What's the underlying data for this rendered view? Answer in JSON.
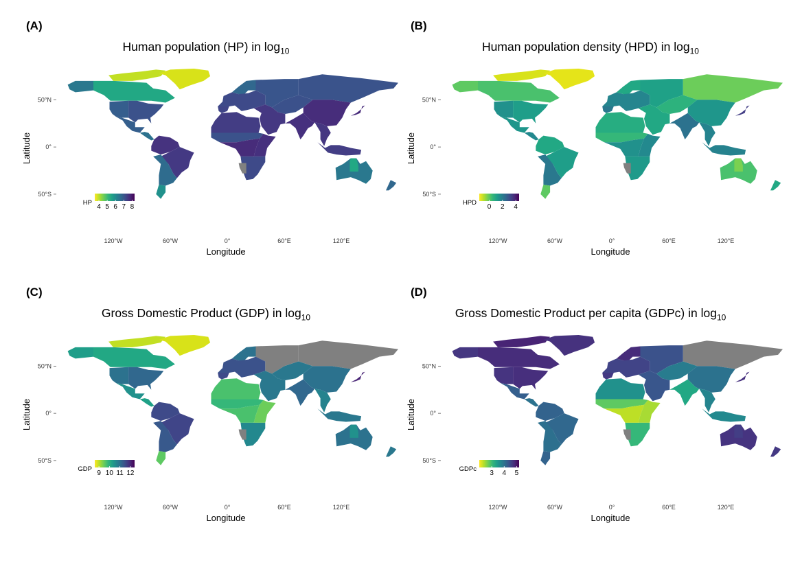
{
  "panels": [
    {
      "letter": "(A)",
      "title_main": "Human population (HP) in log",
      "title_sub": "10",
      "legend": {
        "title": "HP",
        "min": 3.5,
        "max": 8.3,
        "ticks": [
          "4",
          "5",
          "6",
          "7",
          "8"
        ],
        "tick_values": [
          4,
          5,
          6,
          7,
          8
        ]
      },
      "regions": {
        "greenland": "#d8e219",
        "arctic_canada": "#c2df23",
        "alaska": "#2a788e",
        "north_canada": "#22a884",
        "usa_west": "#355e8d",
        "usa_east": "#3b528b",
        "mexico": "#355f8d",
        "central_america": "#2c728e",
        "south_america_north": "#46337f",
        "brazil": "#443983",
        "south_america_south": "#2f6c8e",
        "patagonia": "#21918c",
        "europe": "#3e4a89",
        "scandinavia": "#31688e",
        "iberia": "#404588",
        "russia": "#39558c",
        "siberia": "#3a538b",
        "middle_east": "#453882",
        "north_africa": "#433d84",
        "sahara": "#3b528b",
        "central_africa": "#472c7a",
        "east_africa": "#46307e",
        "southern_africa": "#3e4a89",
        "namibia": "#808080",
        "central_asia": "#3b518b",
        "india": "#46307e",
        "china": "#472d7b",
        "southeast_asia": "#453781",
        "japan": "#472a7a",
        "indonesia": "#433e85",
        "australia": "#2a788e",
        "australia_center": "#22a884",
        "new_zealand": "#31688e"
      }
    },
    {
      "letter": "(B)",
      "title_main": "Human population density (HPD) in log",
      "title_sub": "10",
      "legend": {
        "title": "HPD",
        "min": -1.5,
        "max": 4.5,
        "ticks": [
          "0",
          "2",
          "4"
        ],
        "tick_values": [
          0,
          2,
          4
        ]
      },
      "regions": {
        "greenland": "#e5e419",
        "arctic_canada": "#d8e219",
        "alaska": "#5ec962",
        "north_canada": "#4ac16d",
        "usa_west": "#21918c",
        "usa_east": "#1f9e89",
        "mexico": "#1f968b",
        "central_america": "#23888e",
        "south_america_north": "#22a884",
        "brazil": "#1f9e89",
        "south_america_south": "#2a788e",
        "patagonia": "#5ec962",
        "europe": "#25858e",
        "scandinavia": "#22a884",
        "iberia": "#2a788e",
        "russia": "#1fa187",
        "siberia": "#6ccd5a",
        "middle_east": "#22a884",
        "north_africa": "#27ad81",
        "sahara": "#35b779",
        "central_africa": "#21918c",
        "east_africa": "#23898e",
        "southern_africa": "#1f9a8a",
        "namibia": "#808080",
        "central_asia": "#2db27d",
        "india": "#2c728e",
        "china": "#1f968b",
        "southeast_asia": "#25838e",
        "japan": "#433e85",
        "indonesia": "#26828e",
        "australia": "#4ac16d",
        "australia_center": "#7ad151",
        "new_zealand": "#22a884"
      }
    },
    {
      "letter": "(C)",
      "title_main": "Gross Domestic Product (GDP) in log",
      "title_sub": "10",
      "legend": {
        "title": "GDP",
        "min": 8.6,
        "max": 12.4,
        "ticks": [
          "9",
          "10",
          "11",
          "12"
        ],
        "tick_values": [
          9,
          10,
          11,
          12
        ]
      },
      "regions": {
        "greenland": "#d8e219",
        "arctic_canada": "#c2df23",
        "alaska": "#1f9e89",
        "north_canada": "#22a884",
        "usa_west": "#2c728e",
        "usa_east": "#31688e",
        "mexico": "#21918c",
        "central_america": "#1fa187",
        "south_america_north": "#3e4a89",
        "brazil": "#404588",
        "south_america_south": "#38598c",
        "patagonia": "#5ec962",
        "europe": "#3b528b",
        "scandinavia": "#2c728e",
        "iberia": "#3e4a89",
        "russia": "#808080",
        "siberia": "#808080",
        "middle_east": "#2a788e",
        "north_africa": "#4ac16d",
        "sahara": "#35b779",
        "central_africa": "#4ac16d",
        "east_africa": "#6ccd5a",
        "southern_africa": "#23888e",
        "namibia": "#808080",
        "central_asia": "#2a788e",
        "india": "#31688e",
        "china": "#2c728e",
        "southeast_asia": "#25838e",
        "japan": "#482475",
        "indonesia": "#2a788e",
        "australia": "#2c728e",
        "australia_center": "#21918c",
        "new_zealand": "#2a788e"
      }
    },
    {
      "letter": "(D)",
      "title_main": "Gross Domestic Product per capita (GDPc) in log",
      "title_sub": "10",
      "legend": {
        "title": "GDPc",
        "min": 2.0,
        "max": 5.2,
        "ticks": [
          "3",
          "4",
          "5"
        ],
        "tick_values": [
          3,
          4,
          5
        ]
      },
      "regions": {
        "greenland": "#46327e",
        "arctic_canada": "#482475",
        "alaska": "#453781",
        "north_canada": "#472d7b",
        "usa_west": "#463480",
        "usa_east": "#472f7d",
        "mexico": "#355f8d",
        "central_america": "#2c728e",
        "south_america_north": "#33638d",
        "brazil": "#31688e",
        "south_america_south": "#2d708e",
        "patagonia": "#33638d",
        "europe": "#414487",
        "scandinavia": "#472c7a",
        "iberia": "#443983",
        "russia": "#3b528b",
        "siberia": "#808080",
        "middle_east": "#39568c",
        "north_africa": "#21918c",
        "sahara": "#5ec962",
        "central_africa": "#bddf26",
        "east_africa": "#a8db34",
        "southern_africa": "#35b779",
        "namibia": "#808080",
        "central_asia": "#287c8e",
        "india": "#22a884",
        "china": "#2c728e",
        "southeast_asia": "#25848e",
        "japan": "#46307e",
        "indonesia": "#23898e",
        "australia": "#463480",
        "australia_center": "#433e85",
        "new_zealand": "#443983"
      }
    }
  ],
  "axes": {
    "xlabel": "Longitude",
    "ylabel": "Latitude",
    "x_ticks": [
      {
        "label": "120°W",
        "lon": -120
      },
      {
        "label": "60°W",
        "lon": -60
      },
      {
        "label": "0°",
        "lon": 0
      },
      {
        "label": "60°E",
        "lon": 60
      },
      {
        "label": "120°E",
        "lon": 120
      }
    ],
    "y_ticks": [
      {
        "label": "50°N",
        "lat": 50
      },
      {
        "label": "0°",
        "lat": 0
      },
      {
        "label": "50°S",
        "lat": -50
      }
    ]
  },
  "colors": {
    "no_data": "#808080",
    "viridis": [
      "#440154",
      "#482878",
      "#3e4989",
      "#31688e",
      "#26828e",
      "#1f9e89",
      "#35b779",
      "#6ece58",
      "#b5de2b",
      "#fde725"
    ]
  }
}
